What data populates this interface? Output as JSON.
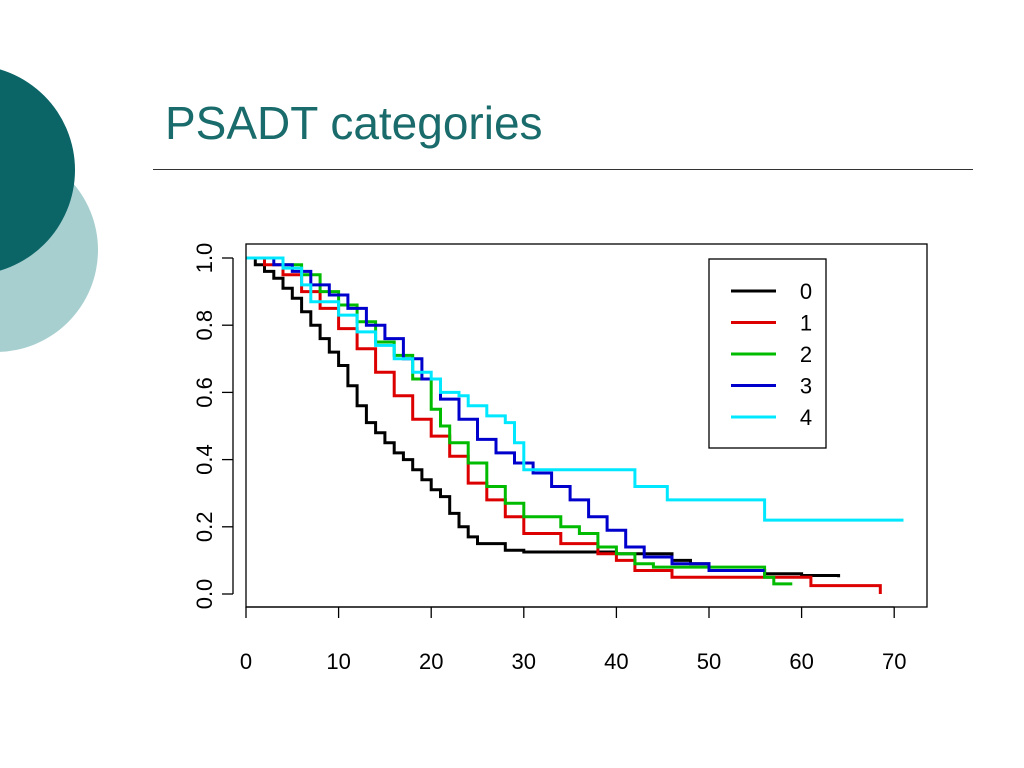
{
  "slide": {
    "title": "PSADT categories",
    "colors": {
      "title": "#1a6b6b",
      "circle_dark": "#0b6466",
      "circle_light": "#a7cfd0"
    }
  },
  "chart_data": {
    "type": "line",
    "title": "",
    "xlabel": "",
    "ylabel": "",
    "xlim": [
      0,
      72
    ],
    "ylim": [
      0,
      1
    ],
    "xticks": [
      "0",
      "10",
      "20",
      "30",
      "40",
      "50",
      "60",
      "70"
    ],
    "yticks": [
      "0.0",
      "0.2",
      "0.4",
      "0.6",
      "0.8",
      "1.0"
    ],
    "legend_position": "top-right",
    "grid": false,
    "series": [
      {
        "name": "0",
        "color": "#000000",
        "points": [
          [
            0,
            1.0
          ],
          [
            1,
            0.98
          ],
          [
            2,
            0.96
          ],
          [
            3,
            0.94
          ],
          [
            4,
            0.91
          ],
          [
            5,
            0.88
          ],
          [
            6,
            0.84
          ],
          [
            7,
            0.8
          ],
          [
            8,
            0.76
          ],
          [
            9,
            0.72
          ],
          [
            10,
            0.68
          ],
          [
            11,
            0.62
          ],
          [
            12,
            0.56
          ],
          [
            13,
            0.51
          ],
          [
            14,
            0.48
          ],
          [
            15,
            0.45
          ],
          [
            16,
            0.42
          ],
          [
            17,
            0.4
          ],
          [
            18,
            0.37
          ],
          [
            19,
            0.34
          ],
          [
            20,
            0.31
          ],
          [
            21,
            0.29
          ],
          [
            22,
            0.24
          ],
          [
            23,
            0.2
          ],
          [
            24,
            0.17
          ],
          [
            25,
            0.15
          ],
          [
            28,
            0.13
          ],
          [
            30,
            0.125
          ],
          [
            40,
            0.12
          ],
          [
            46,
            0.1
          ],
          [
            48,
            0.09
          ],
          [
            50,
            0.07
          ],
          [
            54,
            0.07
          ],
          [
            56,
            0.06
          ],
          [
            60,
            0.055
          ],
          [
            64,
            0.05
          ]
        ]
      },
      {
        "name": "1",
        "color": "#dd0000",
        "points": [
          [
            0,
            1.0
          ],
          [
            2,
            0.98
          ],
          [
            4,
            0.95
          ],
          [
            6,
            0.9
          ],
          [
            8,
            0.85
          ],
          [
            10,
            0.79
          ],
          [
            12,
            0.73
          ],
          [
            14,
            0.66
          ],
          [
            16,
            0.59
          ],
          [
            18,
            0.52
          ],
          [
            20,
            0.47
          ],
          [
            22,
            0.41
          ],
          [
            24,
            0.33
          ],
          [
            26,
            0.28
          ],
          [
            28,
            0.23
          ],
          [
            30,
            0.18
          ],
          [
            34,
            0.15
          ],
          [
            38,
            0.12
          ],
          [
            40,
            0.1
          ],
          [
            42,
            0.07
          ],
          [
            46,
            0.05
          ],
          [
            60,
            0.05
          ],
          [
            61,
            0.025
          ],
          [
            68.5,
            0.025
          ],
          [
            68.5,
            0.0
          ]
        ]
      },
      {
        "name": "2",
        "color": "#00bb00",
        "points": [
          [
            0,
            1.0
          ],
          [
            4,
            0.98
          ],
          [
            6,
            0.95
          ],
          [
            8,
            0.9
          ],
          [
            10,
            0.86
          ],
          [
            12,
            0.81
          ],
          [
            14,
            0.75
          ],
          [
            16,
            0.71
          ],
          [
            18,
            0.64
          ],
          [
            20,
            0.55
          ],
          [
            21,
            0.5
          ],
          [
            22,
            0.45
          ],
          [
            24,
            0.39
          ],
          [
            26,
            0.32
          ],
          [
            28,
            0.27
          ],
          [
            30,
            0.23
          ],
          [
            34,
            0.2
          ],
          [
            36,
            0.18
          ],
          [
            38,
            0.14
          ],
          [
            40,
            0.12
          ],
          [
            42,
            0.09
          ],
          [
            44,
            0.08
          ],
          [
            56,
            0.05
          ],
          [
            57,
            0.03
          ],
          [
            59,
            0.03
          ]
        ]
      },
      {
        "name": "3",
        "color": "#0000cc",
        "points": [
          [
            0,
            1.0
          ],
          [
            3,
            0.98
          ],
          [
            5,
            0.96
          ],
          [
            7,
            0.92
          ],
          [
            9,
            0.89
          ],
          [
            11,
            0.85
          ],
          [
            13,
            0.8
          ],
          [
            15,
            0.76
          ],
          [
            17,
            0.7
          ],
          [
            19,
            0.64
          ],
          [
            21,
            0.58
          ],
          [
            23,
            0.52
          ],
          [
            25,
            0.46
          ],
          [
            27,
            0.42
          ],
          [
            29,
            0.39
          ],
          [
            31,
            0.36
          ],
          [
            33,
            0.32
          ],
          [
            35,
            0.28
          ],
          [
            37,
            0.23
          ],
          [
            39,
            0.19
          ],
          [
            41,
            0.14
          ],
          [
            43,
            0.11
          ],
          [
            46,
            0.09
          ],
          [
            50,
            0.07
          ],
          [
            56,
            0.07
          ]
        ]
      },
      {
        "name": "4",
        "color": "#00e8ff",
        "points": [
          [
            0,
            1.0
          ],
          [
            4,
            0.97
          ],
          [
            6,
            0.92
          ],
          [
            7,
            0.87
          ],
          [
            10,
            0.83
          ],
          [
            12,
            0.78
          ],
          [
            14,
            0.74
          ],
          [
            16,
            0.7
          ],
          [
            18,
            0.66
          ],
          [
            20,
            0.64
          ],
          [
            21,
            0.6
          ],
          [
            23,
            0.59
          ],
          [
            24,
            0.56
          ],
          [
            26,
            0.53
          ],
          [
            28,
            0.51
          ],
          [
            29,
            0.45
          ],
          [
            30,
            0.37
          ],
          [
            42,
            0.32
          ],
          [
            45.5,
            0.28
          ],
          [
            56,
            0.22
          ],
          [
            71,
            0.22
          ]
        ]
      }
    ]
  }
}
